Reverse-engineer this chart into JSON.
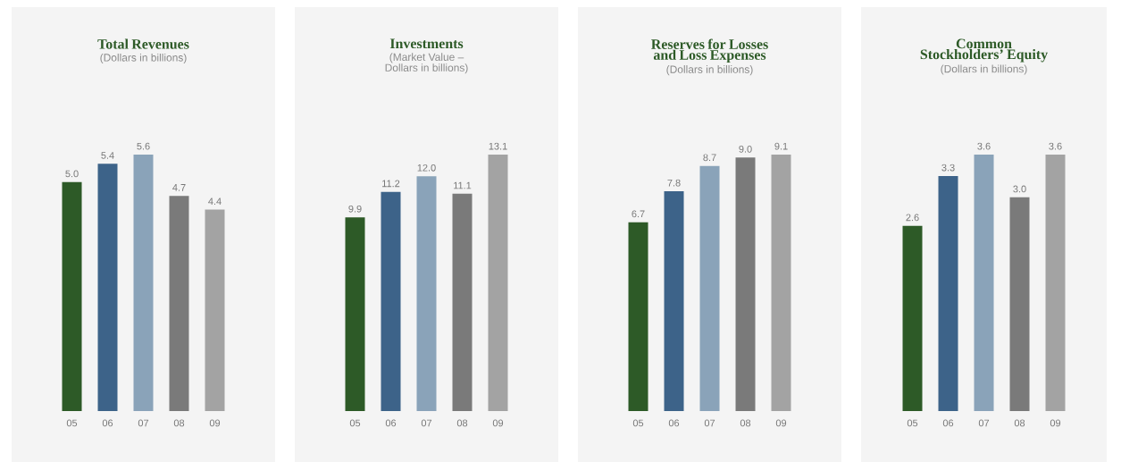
{
  "chart_data": [
    {
      "type": "bar",
      "title": "Total Revenues",
      "subtitle": "(Dollars in billions)",
      "categories": [
        "05",
        "06",
        "07",
        "08",
        "09"
      ],
      "values": [
        5.0,
        5.4,
        5.6,
        4.7,
        4.4
      ],
      "value_labels": [
        "5.0",
        "5.4",
        "5.6",
        "4.7",
        "4.4"
      ],
      "data_labels": true,
      "colors": [
        "#2d5a27",
        "#3d6389",
        "#8aa3b9",
        "#7a7a7a",
        "#a3a3a3"
      ]
    },
    {
      "type": "bar",
      "title": "Investments",
      "subtitle": "(Market Value – Dollars in billions)",
      "categories": [
        "05",
        "06",
        "07",
        "08",
        "09"
      ],
      "values": [
        9.9,
        11.2,
        12.0,
        11.1,
        13.1
      ],
      "value_labels": [
        "9.9",
        "11.2",
        "12.0",
        "11.1",
        "13.1"
      ],
      "data_labels": true,
      "colors": [
        "#2d5a27",
        "#3d6389",
        "#8aa3b9",
        "#7a7a7a",
        "#a3a3a3"
      ]
    },
    {
      "type": "bar",
      "title": "Reserves for Losses and Loss Expenses",
      "subtitle": "(Dollars in billions)",
      "categories": [
        "05",
        "06",
        "07",
        "08",
        "09"
      ],
      "values": [
        6.7,
        7.8,
        8.7,
        9.0,
        9.1
      ],
      "value_labels": [
        "6.7",
        "7.8",
        "8.7",
        "9.0",
        "9.1"
      ],
      "data_labels": true,
      "colors": [
        "#2d5a27",
        "#3d6389",
        "#8aa3b9",
        "#7a7a7a",
        "#a3a3a3"
      ]
    },
    {
      "type": "bar",
      "title": "Common Stockholders’ Equity",
      "subtitle": "(Dollars in billions)",
      "categories": [
        "05",
        "06",
        "07",
        "08",
        "09"
      ],
      "values": [
        2.6,
        3.3,
        3.6,
        3.0,
        3.6
      ],
      "value_labels": [
        "2.6",
        "3.3",
        "3.6",
        "3.0",
        "3.6"
      ],
      "data_labels": true,
      "colors": [
        "#2d5a27",
        "#3d6389",
        "#8aa3b9",
        "#7a7a7a",
        "#a3a3a3"
      ]
    }
  ]
}
